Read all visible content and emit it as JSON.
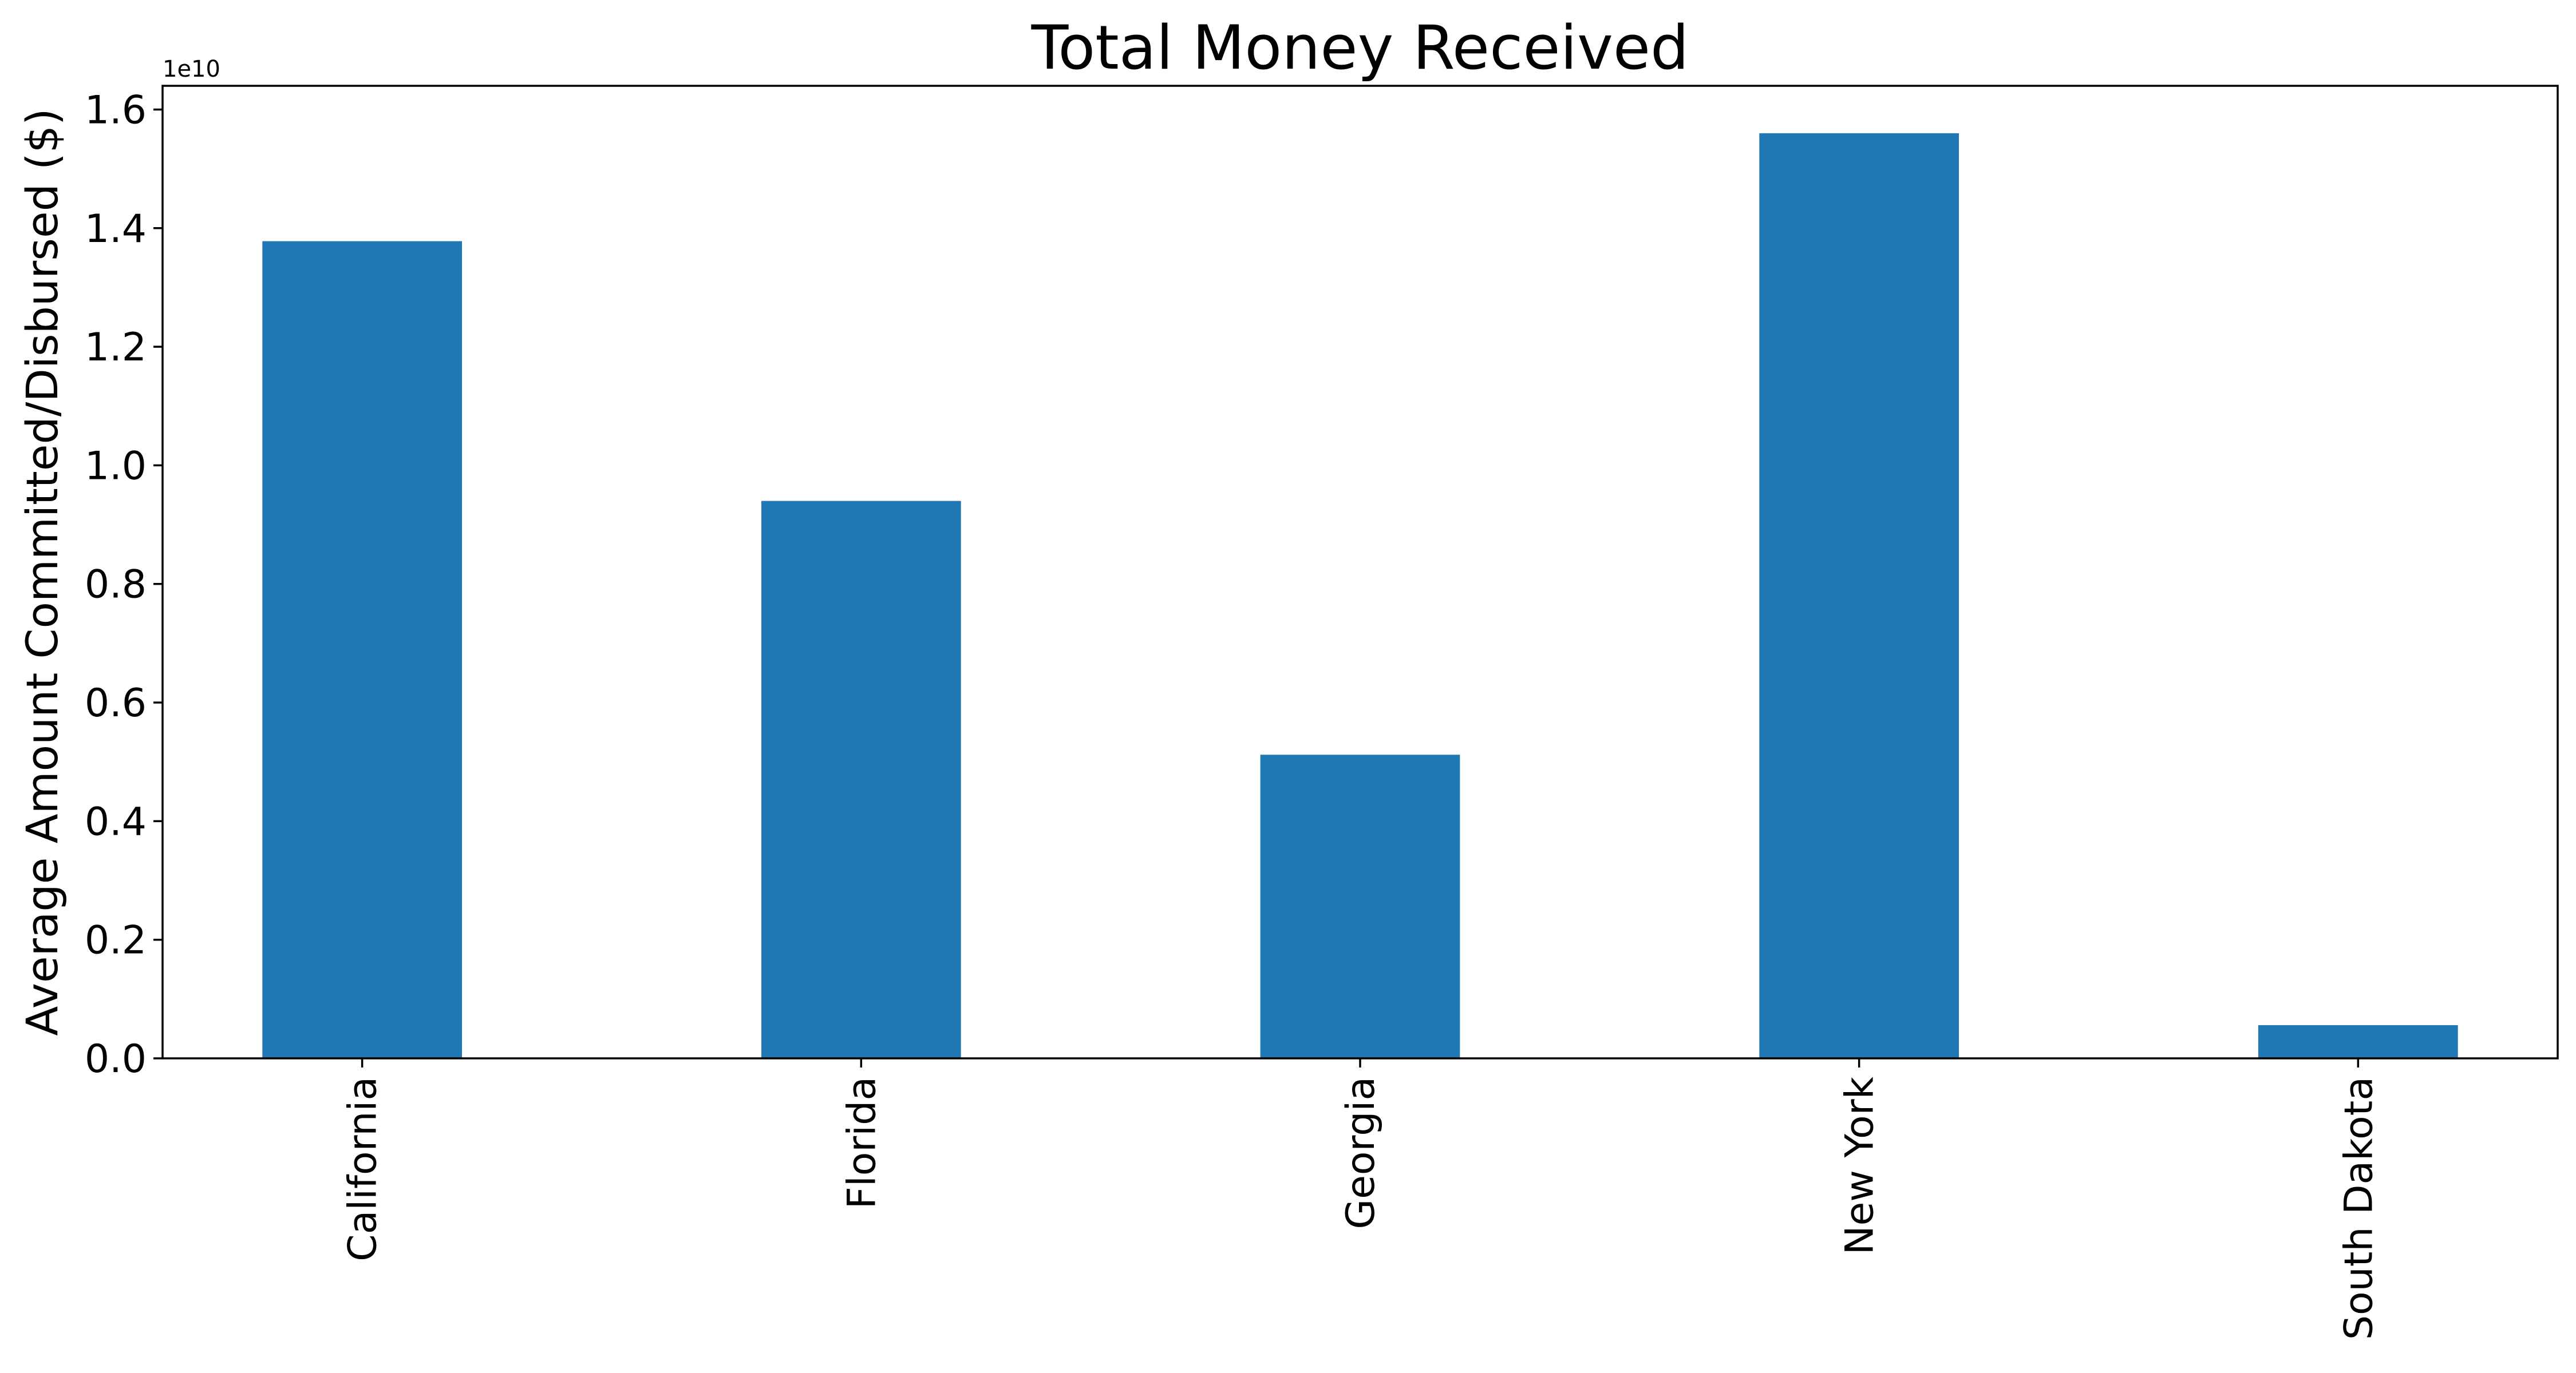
{
  "chart_data": {
    "type": "bar",
    "title": "Total Money Received",
    "xlabel": "",
    "ylabel": "Average Amount Committed/Disbursed ($)",
    "y_offset_label": "1e10",
    "categories": [
      "California",
      "Florida",
      "Georgia",
      "New York",
      "South Dakota"
    ],
    "values": [
      1.378,
      0.94,
      0.512,
      1.56,
      0.056
    ],
    "ylim": [
      0.0,
      1.64
    ],
    "yticks": [
      "0.0",
      "0.2",
      "0.4",
      "0.6",
      "0.8",
      "1.0",
      "1.2",
      "1.4",
      "1.6"
    ],
    "ytick_values": [
      0.0,
      0.2,
      0.4,
      0.6,
      0.8,
      1.0,
      1.2,
      1.4,
      1.6
    ],
    "bar_color": "#1f77b4",
    "grid": false,
    "x_tick_rotation": "vertical"
  }
}
